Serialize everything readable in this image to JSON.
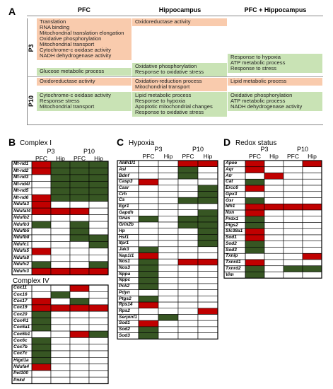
{
  "panelA": {
    "letter": "A",
    "headers": [
      "PFC",
      "Hippocampus",
      "PFC + Hippocampus"
    ],
    "rows": [
      {
        "age": "P3",
        "orange": [
          [
            "Translation",
            "RNA binding",
            "Mitochondrial translation elongation",
            "Oxidative phosphorylation",
            "Mitochondrial transport",
            "Cytochrome-c oxidase activity",
            "NADH dehydrogenase activity"
          ],
          [
            "Oxidoreductase activity"
          ],
          []
        ],
        "green": [
          [
            "Glucose metabolic process"
          ],
          [
            "Oxidative phosphorylation",
            "Response to oxidative stress"
          ],
          [
            "Response to hypoxia",
            "ATP metabolic process",
            "Response to stress"
          ]
        ]
      },
      {
        "age": "P10",
        "orange": [
          [
            "Oxidoreductase activity"
          ],
          [
            "Oxidation-reduction process",
            "Mitochondrial transport"
          ],
          [
            "Lipid metabolic process"
          ]
        ],
        "green": [
          [
            "Cytochrome-c oxidase activity",
            "Response stress",
            "Mitochondrial transport"
          ],
          [
            "Lipid metabolic process",
            "Response to hypoxia",
            "Apoptotic mitochondrial changes",
            "Response to oxidative stress"
          ],
          [
            "Oxidative phosphorylation",
            "ATP metabolic process",
            "NADH dehydrogenase activity"
          ]
        ]
      }
    ]
  },
  "colors": {
    "orange": "#f9cbad",
    "green": "#c9e3b5",
    "up": "#c00000",
    "down": "#375623",
    "weak_up": "#f7c6d6",
    "border": "#000000",
    "grid": "#999999"
  },
  "groups": [
    "P3",
    "P10"
  ],
  "columns": [
    "PFC",
    "Hip",
    "PFC",
    "Hip"
  ],
  "panelB": {
    "letter": "B",
    "sections": [
      {
        "title": "Complex I",
        "genes": [
          "Mt-nd1",
          "Mt-nd2",
          "Mt-nd3",
          "Mt-nd4l",
          "Mt-nd5",
          "Mt-nd6",
          "Ndufa3",
          "Ndufaf4",
          "Ndufb2",
          "Ndufb3",
          "Ndufb5",
          "Ndufb8",
          "Ndufc1",
          "Ndufs5",
          "Ndufs8",
          "Ndufv2",
          "Ndufv3"
        ],
        "cells": [
          [
            "u",
            "d",
            "d",
            "d"
          ],
          [
            "u",
            "d",
            "d",
            "d"
          ],
          [
            "0",
            "d",
            "d",
            "d"
          ],
          [
            "0",
            "d",
            "d",
            "d"
          ],
          [
            "0",
            "d",
            "d",
            "d"
          ],
          [
            "u",
            "d",
            "d",
            "d"
          ],
          [
            "u",
            "0",
            "0",
            "0"
          ],
          [
            "u",
            "u",
            "u",
            "0"
          ],
          [
            "0",
            "0",
            "0",
            "0"
          ],
          [
            "d",
            "0",
            "d",
            "0"
          ],
          [
            "0",
            "0",
            "d",
            "0"
          ],
          [
            "0",
            "0",
            "d",
            "d"
          ],
          [
            "0",
            "0",
            "0",
            "d"
          ],
          [
            "u",
            "0",
            "0",
            "0"
          ],
          [
            "0",
            "0",
            "0",
            "0"
          ],
          [
            "d",
            "0",
            "0",
            "d"
          ],
          [
            "u",
            "u",
            "u",
            "u"
          ]
        ]
      },
      {
        "title": "Complex IV",
        "genes": [
          "Cox11",
          "Cox16",
          "Cox17",
          "Cox19",
          "Cox20",
          "Cox4l1",
          "Cox6a1",
          "Cox6b1",
          "Cox6c",
          "Cox7b",
          "Cox7c",
          "Higd1a",
          "Ndufa4",
          "Pet100",
          "Pnkd"
        ],
        "cells": [
          [
            "0",
            "0",
            "u",
            "0"
          ],
          [
            "0",
            "d",
            "0",
            "0"
          ],
          [
            "u",
            "0",
            "d",
            "0"
          ],
          [
            "u",
            "u",
            "u",
            "u"
          ],
          [
            "d",
            "0",
            "0",
            "0"
          ],
          [
            "d",
            "0",
            "0",
            "0"
          ],
          [
            "d",
            "0",
            "0",
            "0"
          ],
          [
            "0",
            "0",
            "u",
            "d"
          ],
          [
            "d",
            "0",
            "0",
            "0"
          ],
          [
            "d",
            "0",
            "0",
            "0"
          ],
          [
            "d",
            "0",
            "0",
            "0"
          ],
          [
            "d",
            "0",
            "0",
            "0"
          ],
          [
            "u",
            "0",
            "0",
            "0"
          ],
          [
            "0",
            "0",
            "0",
            "0"
          ],
          [
            "0",
            "0",
            "0",
            "0"
          ]
        ]
      }
    ]
  },
  "panelC": {
    "letter": "C",
    "title": "Hypoxia",
    "genes": [
      "Aldh1l1",
      "Asl",
      "Bdnf",
      "Casp3",
      "Casr",
      "Crh",
      "Cs",
      "Egr1",
      "Gapdh",
      "Gnas",
      "Grin2b",
      "Hp",
      "Hsf1",
      "Itpr1",
      "Jak3",
      "Nap1l1",
      "Nos1",
      "Nos3",
      "Nppa",
      "Nppc",
      "Pck2",
      "Pdyn",
      "Ptgs2",
      "Rps14",
      "Rps2",
      "Serpinf1",
      "Sod1",
      "Sod2",
      "Sod3"
    ],
    "cells": [
      [
        "0",
        "0",
        "u",
        "u"
      ],
      [
        "0",
        "0",
        "d",
        "0"
      ],
      [
        "0",
        "0",
        "d",
        "0"
      ],
      [
        "u",
        "0",
        "0",
        "0"
      ],
      [
        "0",
        "0",
        "0",
        "d"
      ],
      [
        "0",
        "0",
        "0",
        "d"
      ],
      [
        "0",
        "0",
        "d",
        "d"
      ],
      [
        "0",
        "0",
        "0",
        "0"
      ],
      [
        "0",
        "0",
        "0",
        "d"
      ],
      [
        "d",
        "0",
        "d",
        "d"
      ],
      [
        "0",
        "0",
        "d",
        "d"
      ],
      [
        "0",
        "0",
        "0",
        "d"
      ],
      [
        "0",
        "0",
        "0",
        "d"
      ],
      [
        "0",
        "0",
        "0",
        "d"
      ],
      [
        "d",
        "0",
        "0",
        "0"
      ],
      [
        "u",
        "0",
        "0",
        "0"
      ],
      [
        "d",
        "0",
        "u",
        "u"
      ],
      [
        "d",
        "0",
        "0",
        "0"
      ],
      [
        "d",
        "0",
        "0",
        "0"
      ],
      [
        "d",
        "0",
        "0",
        "0"
      ],
      [
        "d",
        "0",
        "0",
        "0"
      ],
      [
        "0",
        "0",
        "0",
        "0"
      ],
      [
        "d",
        "0",
        "0",
        "0"
      ],
      [
        "u",
        "0",
        "0",
        "0"
      ],
      [
        "0",
        "0",
        "0",
        "u"
      ],
      [
        "0",
        "d",
        "0",
        "0"
      ],
      [
        "u",
        "0",
        "0",
        "0"
      ],
      [
        "d",
        "0",
        "0",
        "0"
      ],
      [
        "d",
        "0",
        "0",
        "0"
      ]
    ]
  },
  "panelD": {
    "letter": "D",
    "title": "Redox status",
    "genes": [
      "Apoe",
      "Aqr",
      "Atr",
      "Cat",
      "Ercc6",
      "Gpx3",
      "Gsr",
      "Idh1",
      "Nxn",
      "Prdx1",
      "Ptgs2",
      "Slc38a1",
      "Sod1",
      "Sod2",
      "Sod3",
      "Txnip",
      "Txnrd1",
      "Txnrd2",
      "Vim"
    ],
    "cells": [
      [
        "u",
        "0",
        "0",
        "u"
      ],
      [
        "u",
        "0",
        "0",
        "0"
      ],
      [
        "0",
        "u",
        "0",
        "0"
      ],
      [
        "d",
        "0",
        "0",
        "0"
      ],
      [
        "u",
        "0",
        "0",
        "0"
      ],
      [
        "0",
        "0",
        "0",
        "0"
      ],
      [
        "d",
        "0",
        "0",
        "0"
      ],
      [
        "u",
        "u",
        "u",
        "u"
      ],
      [
        "u",
        "0",
        "0",
        "0"
      ],
      [
        "d",
        "0",
        "0",
        "0"
      ],
      [
        "d",
        "0",
        "0",
        "0"
      ],
      [
        "u",
        "0",
        "0",
        "0"
      ],
      [
        "u",
        "0",
        "0",
        "0"
      ],
      [
        "d",
        "0",
        "0",
        "0"
      ],
      [
        "d",
        "0",
        "0",
        "0"
      ],
      [
        "0",
        "0",
        "0",
        "u"
      ],
      [
        "u",
        "0",
        "0",
        "0"
      ],
      [
        "d",
        "0",
        "d",
        "d"
      ],
      [
        "d",
        "0",
        "0",
        "0"
      ]
    ]
  }
}
